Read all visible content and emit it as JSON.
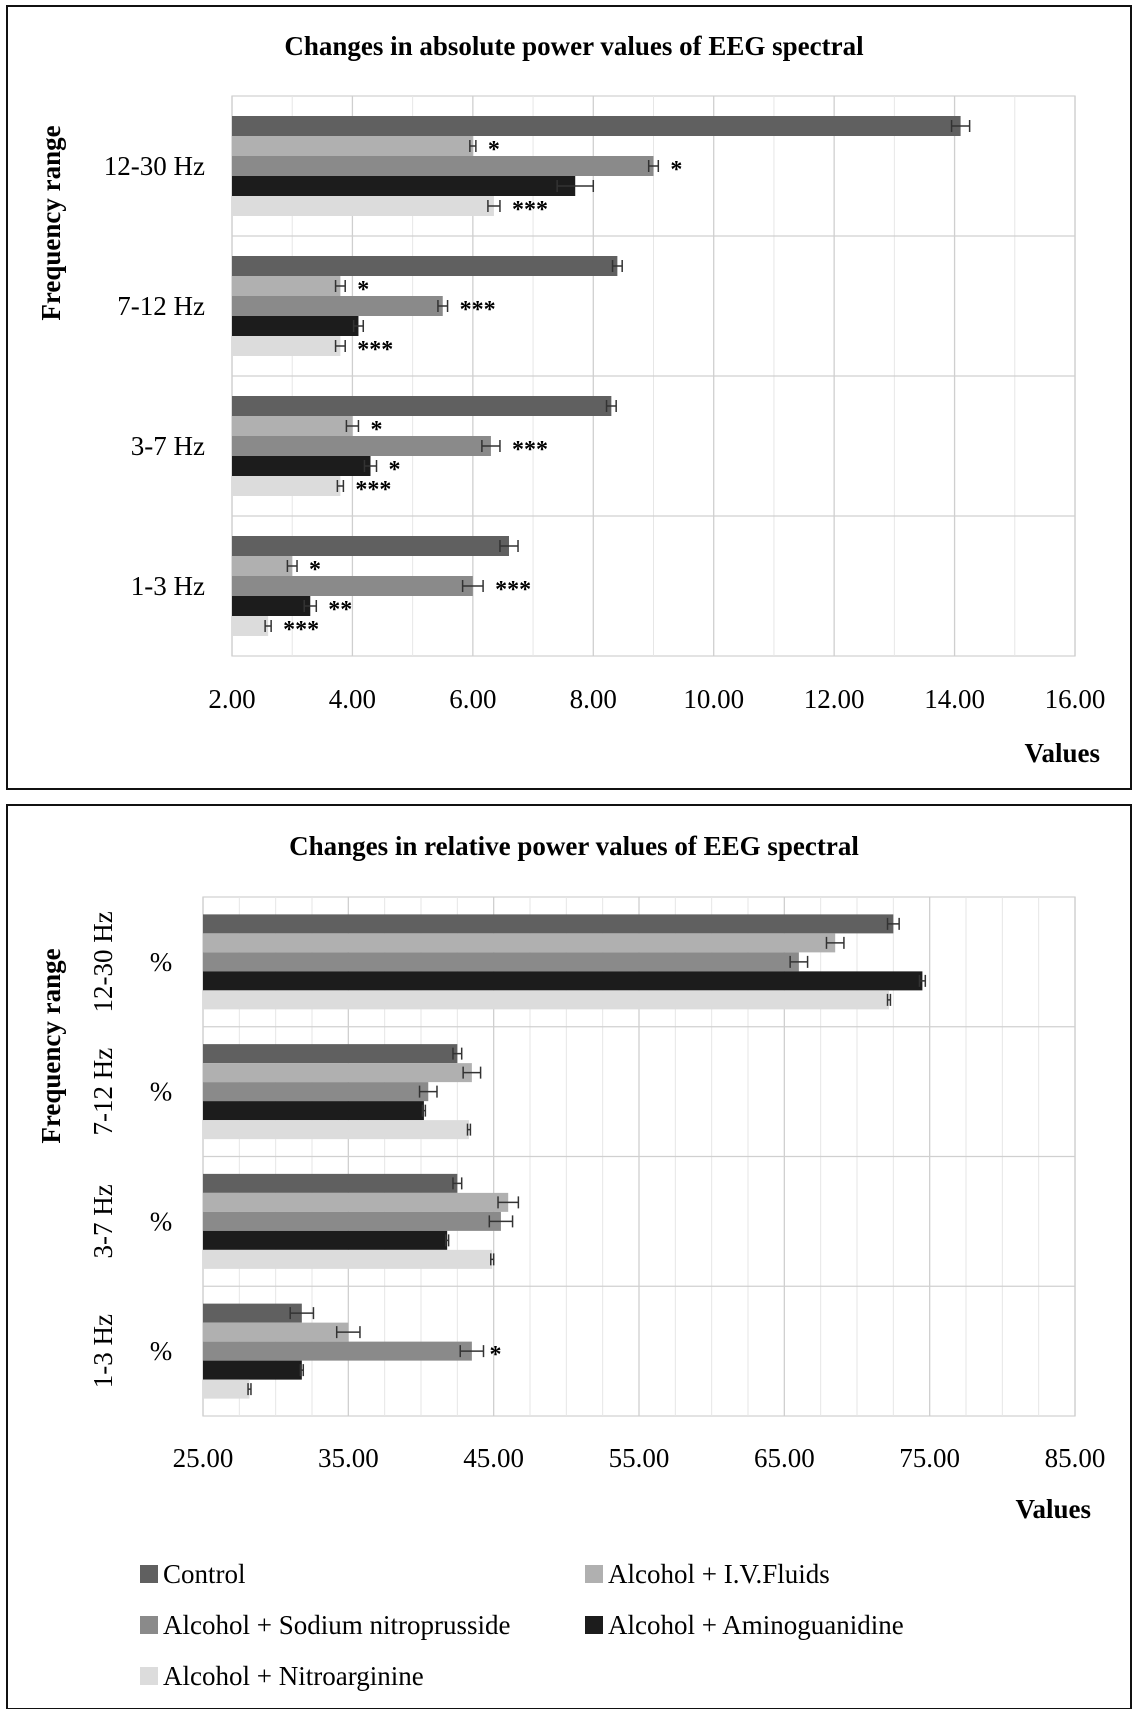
{
  "colors": {
    "Control": "#606060",
    "Alcohol + I.V.Fluids": "#b0b0b0",
    "Alcohol + Sodium nitroprusside": "#8a8a8a",
    "Alcohol + Aminoguanidine": "#1c1c1c",
    "Alcohol + Nitroarginine": "#dcdcdc"
  },
  "legend": [
    "Control",
    "Alcohol + I.V.Fluids",
    "Alcohol + Sodium nitroprusside",
    "Alcohol + Aminoguanidine",
    "Alcohol + Nitroarginine"
  ],
  "chart_data": [
    {
      "type": "bar",
      "orientation": "horizontal",
      "title": "Changes in absolute power values of EEG spectral",
      "xlabel": "Values",
      "ylabel": "Frequency range",
      "xlim": [
        2,
        16
      ],
      "xticks": [
        "2.00",
        "4.00",
        "6.00",
        "8.00",
        "10.00",
        "12.00",
        "14.00",
        "16.00"
      ],
      "categories": [
        "12-30 Hz",
        "7-12 Hz",
        "3-7  Hz",
        "1-3  Hz"
      ],
      "series": [
        {
          "name": "Control",
          "values": [
            14.1,
            8.4,
            8.3,
            6.6
          ],
          "errors": [
            0.15,
            0.08,
            0.08,
            0.15
          ],
          "marks": [
            "",
            "",
            "",
            ""
          ]
        },
        {
          "name": "Alcohol + I.V.Fluids",
          "values": [
            6.0,
            3.8,
            4.0,
            3.0
          ],
          "errors": [
            0.05,
            0.08,
            0.1,
            0.08
          ],
          "marks": [
            "*",
            "*",
            "*",
            "*"
          ]
        },
        {
          "name": "Alcohol + Sodium nitroprusside",
          "values": [
            9.0,
            5.5,
            6.3,
            6.0
          ],
          "errors": [
            0.08,
            0.08,
            0.15,
            0.17
          ],
          "marks": [
            "*",
            "***",
            "***",
            "***"
          ]
        },
        {
          "name": "Alcohol + Aminoguanidine",
          "values": [
            7.7,
            4.1,
            4.3,
            3.3
          ],
          "errors": [
            0.3,
            0.08,
            0.1,
            0.1
          ],
          "marks": [
            "",
            "",
            "*",
            "**"
          ]
        },
        {
          "name": "Alcohol + Nitroarginine",
          "values": [
            6.35,
            3.8,
            3.8,
            2.6
          ],
          "errors": [
            0.1,
            0.08,
            0.05,
            0.05
          ],
          "marks": [
            "***",
            "***",
            "***",
            "***"
          ]
        }
      ]
    },
    {
      "type": "bar",
      "orientation": "horizontal",
      "title": "Changes in relative power values of EEG spectral",
      "xlabel": "Values",
      "ylabel": "Frequency range",
      "xlim": [
        25,
        85
      ],
      "xticks": [
        "25.00",
        "35.00",
        "45.00",
        "55.00",
        "65.00",
        "75.00",
        "85.00"
      ],
      "categories": [
        "12-30 Hz",
        "7-12 Hz",
        "3-7  Hz",
        "1-3  Hz"
      ],
      "category_unit": "%",
      "series": [
        {
          "name": "Control",
          "values": [
            72.5,
            42.5,
            42.5,
            31.8
          ],
          "errors": [
            0.4,
            0.3,
            0.3,
            0.8
          ],
          "marks": [
            "",
            "",
            "",
            ""
          ]
        },
        {
          "name": "Alcohol + I.V.Fluids",
          "values": [
            68.5,
            43.5,
            46.0,
            35.0
          ],
          "errors": [
            0.6,
            0.6,
            0.7,
            0.8
          ],
          "marks": [
            "",
            "",
            "",
            ""
          ]
        },
        {
          "name": "Alcohol + Sodium nitroprusside",
          "values": [
            66.0,
            40.5,
            45.5,
            43.5
          ],
          "errors": [
            0.6,
            0.6,
            0.8,
            0.8
          ],
          "marks": [
            "",
            "",
            "",
            "*"
          ]
        },
        {
          "name": "Alcohol + Aminoguanidine",
          "values": [
            74.5,
            40.2,
            41.8,
            31.8
          ],
          "errors": [
            0.2,
            0.1,
            0.1,
            0.1
          ],
          "marks": [
            "",
            "",
            "",
            ""
          ]
        },
        {
          "name": "Alcohol + Nitroarginine",
          "values": [
            72.2,
            43.3,
            44.9,
            28.2
          ],
          "errors": [
            0.1,
            0.1,
            0.1,
            0.1
          ],
          "marks": [
            "",
            "",
            "",
            ""
          ]
        }
      ]
    }
  ]
}
